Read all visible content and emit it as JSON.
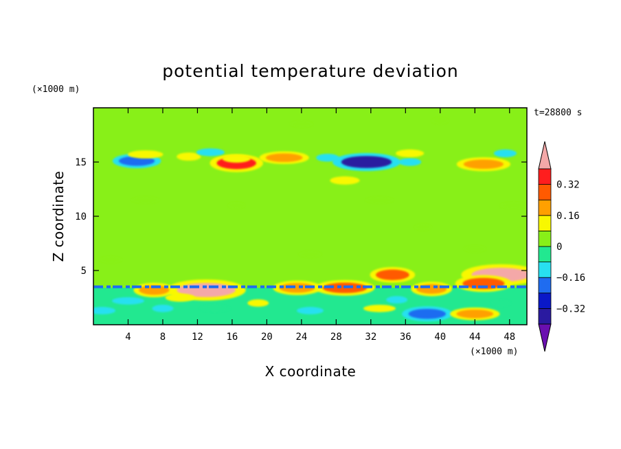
{
  "chart_data": {
    "type": "heatmap",
    "title": "potential temperature deviation",
    "xlabel": "X coordinate",
    "ylabel": "Z coordinate",
    "x_unit": "(×1000 m)",
    "y_unit": "(×1000 m)",
    "time_label": "t=28800 s",
    "xlim": [
      0,
      50
    ],
    "ylim": [
      0,
      20
    ],
    "x_ticks": [
      4,
      8,
      12,
      16,
      20,
      24,
      28,
      32,
      36,
      40,
      44,
      48
    ],
    "y_ticks": [
      5,
      10,
      15
    ],
    "colorbar": {
      "levels": [
        -0.4,
        -0.32,
        -0.24,
        -0.16,
        -0.08,
        0,
        0.08,
        0.16,
        0.24,
        0.32,
        0.4
      ],
      "colors": [
        "#6a0fb0",
        "#2a1aa0",
        "#0a18c8",
        "#1f6cf0",
        "#28e0f0",
        "#22e890",
        "#88f018",
        "#f8f800",
        "#ffa000",
        "#ff5a00",
        "#ff1e1e",
        "#f4a8a8"
      ],
      "tick_labels": [
        "0.32",
        "0.16",
        "0",
        "−0.16",
        "−0.32"
      ],
      "tick_values": [
        0.32,
        0.16,
        0,
        -0.16,
        -0.32
      ],
      "extend": "both"
    },
    "features": [
      {
        "x": 16.5,
        "z": 14.9,
        "value": 0.34
      },
      {
        "x": 16.5,
        "z": 15.3,
        "value": 0.12
      },
      {
        "x": 31.5,
        "z": 15.0,
        "value": -0.34
      },
      {
        "x": 27.0,
        "z": 15.4,
        "value": -0.12
      },
      {
        "x": 5.0,
        "z": 15.1,
        "value": -0.22
      },
      {
        "x": 6.0,
        "z": 15.7,
        "value": 0.14
      },
      {
        "x": 11.0,
        "z": 15.5,
        "value": 0.14
      },
      {
        "x": 13.5,
        "z": 15.9,
        "value": -0.12
      },
      {
        "x": 22.0,
        "z": 15.4,
        "value": 0.16
      },
      {
        "x": 36.5,
        "z": 15.0,
        "value": -0.12
      },
      {
        "x": 36.5,
        "z": 15.8,
        "value": 0.12
      },
      {
        "x": 45.0,
        "z": 14.8,
        "value": 0.2
      },
      {
        "x": 47.5,
        "z": 15.8,
        "value": -0.12
      },
      {
        "x": 29.0,
        "z": 13.3,
        "value": 0.14
      },
      {
        "x": 47.0,
        "z": 4.6,
        "value": 0.45
      },
      {
        "x": 34.5,
        "z": 4.6,
        "value": 0.26
      },
      {
        "x": 45.0,
        "z": 3.8,
        "value": 0.3
      },
      {
        "x": 13.0,
        "z": 3.2,
        "value": 0.45
      },
      {
        "x": 7.0,
        "z": 3.2,
        "value": 0.22
      },
      {
        "x": 23.5,
        "z": 3.4,
        "value": 0.22
      },
      {
        "x": 29.0,
        "z": 3.4,
        "value": 0.26
      },
      {
        "x": 39.0,
        "z": 3.3,
        "value": 0.22
      },
      {
        "x": 1.0,
        "z": 1.3,
        "value": -0.1
      },
      {
        "x": 4.0,
        "z": 2.2,
        "value": -0.1
      },
      {
        "x": 8.0,
        "z": 1.5,
        "value": -0.1
      },
      {
        "x": 10.0,
        "z": 2.5,
        "value": 0.14
      },
      {
        "x": 14.0,
        "z": 1.5,
        "value": -0.08
      },
      {
        "x": 19.0,
        "z": 2.0,
        "value": 0.1
      },
      {
        "x": 25.0,
        "z": 1.3,
        "value": -0.1
      },
      {
        "x": 33.0,
        "z": 1.5,
        "value": 0.1
      },
      {
        "x": 35.0,
        "z": 2.3,
        "value": -0.1
      },
      {
        "x": 38.5,
        "z": 1.0,
        "value": -0.24
      },
      {
        "x": 44.0,
        "z": 1.0,
        "value": 0.16
      },
      {
        "x": 47.0,
        "z": 2.0,
        "value": -0.08
      },
      {
        "x": 2.0,
        "z": 6.0,
        "value": 0.04
      },
      {
        "x": 6.0,
        "z": 11.5,
        "value": 0.04
      },
      {
        "x": 16.5,
        "z": 11.0,
        "value": 0.04
      },
      {
        "x": 25.0,
        "z": 6.5,
        "value": 0.04
      },
      {
        "x": 33.0,
        "z": 11.5,
        "value": 0.04
      },
      {
        "x": 38.0,
        "z": 9.0,
        "value": 0.04
      },
      {
        "x": 44.0,
        "z": 7.0,
        "value": 0.04
      },
      {
        "x": 48.5,
        "z": 11.0,
        "value": 0.04
      },
      {
        "x": 40.0,
        "z": 18.8,
        "value": 0.04
      },
      {
        "x": 24.0,
        "z": 18.5,
        "value": 0.04
      }
    ],
    "lines": [
      {
        "z": 3.5,
        "x": [
          0,
          50
        ],
        "value": -0.2
      }
    ]
  }
}
